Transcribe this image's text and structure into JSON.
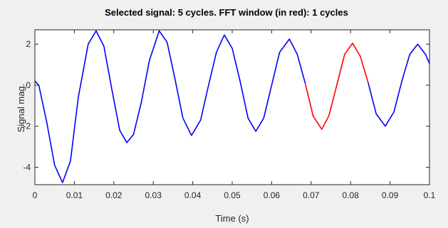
{
  "chart_data": {
    "type": "line",
    "title": "Selected signal: 5 cycles. FFT window (in red): 1 cycles",
    "xlabel": "Time (s)",
    "ylabel": "Signal mag.",
    "xlim": [
      0,
      0.1
    ],
    "ylim": [
      -4.85,
      2.7
    ],
    "x_ticks": [
      0,
      0.01,
      0.02,
      0.03,
      0.04,
      0.05,
      0.06,
      0.07,
      0.08,
      0.09,
      0.1
    ],
    "y_ticks": [
      2,
      0,
      -2,
      -4
    ],
    "x_tick_labels": [
      "0",
      "0.01",
      "0.02",
      "0.03",
      "0.04",
      "0.05",
      "0.06",
      "0.07",
      "0.08",
      "0.09",
      "0.1"
    ],
    "y_tick_labels": [
      "2",
      "0",
      "-2",
      "-4"
    ],
    "grid": false,
    "series": [
      {
        "color": "#0000ff",
        "x": [
          0,
          0.001,
          0.003,
          0.005,
          0.007,
          0.009,
          0.011,
          0.0135,
          0.0155,
          0.0175,
          0.0195,
          0.0215,
          0.0233,
          0.025,
          0.027,
          0.029,
          0.0315,
          0.0335,
          0.0355,
          0.0375,
          0.0397,
          0.042,
          0.044,
          0.046,
          0.048,
          0.05,
          0.052,
          0.054,
          0.056,
          0.058,
          0.06,
          0.062,
          0.0645,
          0.0665,
          0.0685
        ],
        "y": [
          0.2,
          0.0,
          -1.8,
          -3.9,
          -4.75,
          -3.7,
          -0.6,
          2.0,
          2.65,
          1.9,
          -0.2,
          -2.2,
          -2.8,
          -2.4,
          -0.8,
          1.2,
          2.65,
          2.1,
          0.3,
          -1.6,
          -2.45,
          -1.7,
          0.0,
          1.6,
          2.45,
          1.8,
          0.2,
          -1.6,
          -2.25,
          -1.6,
          0.0,
          1.6,
          2.25,
          1.5,
          0.1
        ]
      },
      {
        "color": "#ff0000",
        "x": [
          0.0685,
          0.0705,
          0.0727,
          0.0745,
          0.0765,
          0.0785,
          0.0805,
          0.0825,
          0.0845
        ],
        "y": [
          0.1,
          -1.5,
          -2.15,
          -1.5,
          0.0,
          1.5,
          2.05,
          1.4,
          0.1
        ]
      },
      {
        "color": "#0000ff",
        "x": [
          0.0845,
          0.0865,
          0.0888,
          0.091,
          0.093,
          0.095,
          0.097,
          0.099,
          0.1
        ],
        "y": [
          0.1,
          -1.4,
          -2.0,
          -1.3,
          0.2,
          1.5,
          2.0,
          1.5,
          1.05
        ]
      }
    ]
  }
}
